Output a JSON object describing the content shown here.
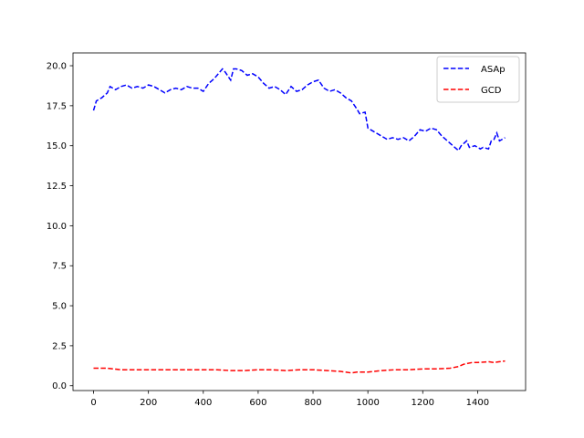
{
  "chart_data": {
    "type": "line",
    "title": "",
    "xlabel": "",
    "ylabel": "",
    "xlim": [
      -75,
      1575
    ],
    "ylim": [
      -0.3,
      20.8
    ],
    "xticks": [
      0,
      200,
      400,
      600,
      800,
      1000,
      1200,
      1400
    ],
    "xtick_labels": [
      "0",
      "200",
      "400",
      "600",
      "800",
      "1000",
      "1200",
      "1400"
    ],
    "yticks": [
      0,
      2.5,
      5,
      7.5,
      10,
      12.5,
      15,
      17.5,
      20
    ],
    "ytick_labels": [
      "0.0",
      "2.5",
      "5.0",
      "7.5",
      "10.0",
      "12.5",
      "15.0",
      "17.5",
      "20.0"
    ],
    "grid": false,
    "legend_position": "top-right",
    "series": [
      {
        "name": "ASAp",
        "color": "#0000ff",
        "style": "dashed",
        "x": [
          0,
          10,
          30,
          50,
          60,
          80,
          100,
          120,
          140,
          160,
          180,
          200,
          220,
          240,
          260,
          280,
          300,
          320,
          340,
          360,
          380,
          400,
          420,
          440,
          460,
          470,
          480,
          500,
          510,
          520,
          540,
          560,
          580,
          600,
          620,
          640,
          660,
          680,
          700,
          720,
          740,
          760,
          780,
          800,
          820,
          840,
          860,
          880,
          900,
          920,
          940,
          960,
          970,
          990,
          1000,
          1010,
          1030,
          1050,
          1070,
          1090,
          1110,
          1130,
          1150,
          1170,
          1190,
          1210,
          1230,
          1250,
          1270,
          1290,
          1310,
          1330,
          1340,
          1360,
          1370,
          1390,
          1410,
          1420,
          1440,
          1450,
          1460,
          1470,
          1480,
          1500
        ],
        "y": [
          17.2,
          17.8,
          18.0,
          18.3,
          18.7,
          18.5,
          18.7,
          18.8,
          18.6,
          18.7,
          18.6,
          18.8,
          18.7,
          18.5,
          18.3,
          18.5,
          18.6,
          18.5,
          18.7,
          18.6,
          18.6,
          18.4,
          18.9,
          19.2,
          19.6,
          19.8,
          19.6,
          19.1,
          19.8,
          19.8,
          19.7,
          19.4,
          19.5,
          19.3,
          18.9,
          18.6,
          18.7,
          18.5,
          18.2,
          18.7,
          18.4,
          18.5,
          18.8,
          19.0,
          19.1,
          18.6,
          18.4,
          18.5,
          18.3,
          18.0,
          17.8,
          17.3,
          17.0,
          17.1,
          16.1,
          16.0,
          15.8,
          15.6,
          15.4,
          15.5,
          15.4,
          15.5,
          15.3,
          15.6,
          16.0,
          15.9,
          16.1,
          16.0,
          15.6,
          15.3,
          15.0,
          14.7,
          15.0,
          15.3,
          14.9,
          15.0,
          14.8,
          14.9,
          14.8,
          15.3,
          15.4,
          15.8,
          15.3,
          15.5
        ]
      },
      {
        "name": "GCD",
        "color": "#ff0000",
        "style": "dashed",
        "x": [
          0,
          50,
          100,
          150,
          200,
          250,
          300,
          350,
          400,
          450,
          500,
          550,
          600,
          650,
          700,
          750,
          800,
          850,
          900,
          940,
          960,
          1000,
          1050,
          1100,
          1150,
          1200,
          1250,
          1300,
          1330,
          1350,
          1380,
          1400,
          1440,
          1460,
          1480,
          1500
        ],
        "y": [
          1.1,
          1.1,
          1.0,
          1.0,
          1.0,
          1.0,
          1.0,
          1.0,
          1.0,
          1.0,
          0.95,
          0.95,
          1.0,
          1.0,
          0.95,
          1.0,
          1.0,
          0.95,
          0.9,
          0.8,
          0.85,
          0.85,
          0.95,
          1.0,
          1.0,
          1.05,
          1.05,
          1.1,
          1.2,
          1.35,
          1.45,
          1.45,
          1.5,
          1.45,
          1.5,
          1.55
        ]
      }
    ]
  }
}
